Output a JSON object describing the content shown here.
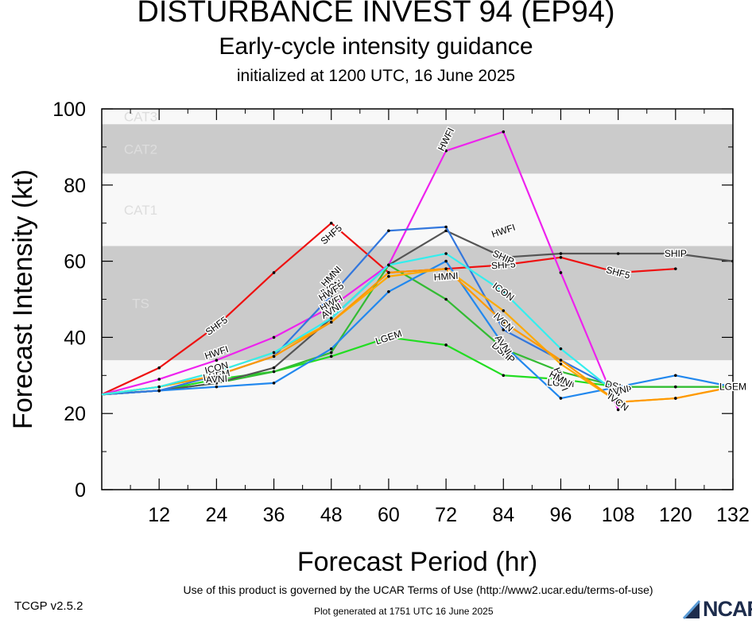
{
  "header": {
    "title": "DISTURBANCE INVEST 94 (EP94)",
    "subtitle": "Early-cycle intensity guidance",
    "init": "initialized at 1200 UTC, 16 June 2025"
  },
  "footer": {
    "version": "TCGP v2.5.2",
    "terms": "Use of this product is governed by the UCAR Terms of Use (http://www2.ucar.edu/terms-of-use)",
    "generated": "Plot generated at 1751 UTC   16 June 2025",
    "logo": "NCAR"
  },
  "chart_data": {
    "type": "line",
    "xlabel": "Forecast Period (hr)",
    "ylabel": "Forecast Intensity (kt)",
    "xlim": [
      0,
      132
    ],
    "ylim": [
      0,
      100
    ],
    "xticks": [
      12,
      24,
      36,
      48,
      60,
      72,
      84,
      96,
      108,
      120,
      132
    ],
    "yticks": [
      0,
      20,
      40,
      60,
      80,
      100
    ],
    "bands": [
      {
        "label": "TS",
        "y0": 34,
        "y1": 64,
        "color": "#cbcbcb"
      },
      {
        "label": "CAT1",
        "y0": 64,
        "y1": 83,
        "color": "#f8f8f8"
      },
      {
        "label": "CAT2",
        "y0": 83,
        "y1": 96,
        "color": "#cbcbcb"
      },
      {
        "label": "CAT3",
        "y0": 96,
        "y1": 100,
        "color": "#f8f8f8"
      }
    ],
    "background_color": "#f8f8f8",
    "series": [
      {
        "name": "SHF5",
        "color": "#ee1111",
        "x": [
          0,
          12,
          24,
          36,
          48,
          60,
          72,
          84,
          96,
          108,
          120
        ],
        "y": [
          25,
          32,
          43,
          57,
          70,
          57,
          58,
          59,
          61,
          57,
          58
        ],
        "labels": [
          [
            24,
            43
          ],
          [
            48,
            67
          ],
          [
            84,
            59
          ],
          [
            108,
            57
          ]
        ]
      },
      {
        "name": "HWFI",
        "color": "#ee22ee",
        "x": [
          0,
          12,
          24,
          36,
          48,
          60,
          72,
          84,
          96,
          108
        ],
        "y": [
          25,
          29,
          34,
          40,
          48,
          59,
          89,
          94,
          57,
          21
        ],
        "labels": [
          [
            24,
            36
          ],
          [
            48,
            49
          ],
          [
            72,
            92
          ],
          [
            84,
            68
          ],
          [
            96,
            29
          ]
        ]
      },
      {
        "name": "LGEM",
        "color": "#22dd22",
        "x": [
          0,
          12,
          24,
          36,
          48,
          60,
          72,
          84,
          96,
          108,
          120,
          132
        ],
        "y": [
          25,
          26,
          29,
          31,
          35,
          40,
          38,
          30,
          29,
          27,
          27,
          27
        ],
        "labels": [
          [
            24,
            30
          ],
          [
            60,
            40
          ],
          [
            96,
            28
          ],
          [
            132,
            27
          ]
        ]
      },
      {
        "name": "DSHP",
        "color": "#33bb33",
        "x": [
          0,
          12,
          24,
          36,
          48,
          60,
          72,
          84,
          96,
          108,
          120,
          132
        ],
        "y": [
          25,
          26,
          28,
          31,
          36,
          59,
          50,
          37,
          31,
          27,
          27,
          27
        ],
        "labels": [
          [
            84,
            36
          ],
          [
            108,
            27
          ]
        ]
      },
      {
        "name": "SHIP",
        "color": "#555555",
        "x": [
          0,
          12,
          24,
          36,
          48,
          60,
          72,
          84,
          96,
          108,
          120,
          132
        ],
        "y": [
          25,
          26,
          28,
          32,
          45,
          59,
          68,
          61,
          62,
          62,
          62,
          60
        ],
        "labels": [
          [
            84,
            61
          ],
          [
            120,
            62
          ]
        ]
      },
      {
        "name": "AVNI",
        "color": "#2288ee",
        "x": [
          0,
          12,
          24,
          36,
          48,
          60,
          72,
          84,
          96,
          108,
          120,
          132
        ],
        "y": [
          25,
          26,
          27,
          28,
          37,
          52,
          60,
          38,
          24,
          27,
          30,
          27
        ],
        "labels": [
          [
            24,
            29
          ],
          [
            48,
            47
          ],
          [
            84,
            38
          ],
          [
            108,
            26
          ]
        ]
      },
      {
        "name": "HMNI",
        "color": "#3377dd",
        "x": [
          0,
          12,
          24,
          36,
          48,
          60,
          72,
          84,
          96,
          108
        ],
        "y": [
          25,
          26,
          30,
          35,
          51,
          68,
          69,
          42,
          34,
          26
        ],
        "labels": [
          [
            48,
            56
          ],
          [
            72,
            56
          ],
          [
            96,
            29
          ]
        ]
      },
      {
        "name": "ICON",
        "color": "#ffaa00",
        "x": [
          0,
          12,
          24,
          36,
          48,
          60,
          72,
          84,
          96,
          108,
          120,
          132
        ],
        "y": [
          25,
          27,
          31,
          36,
          44,
          56,
          58,
          47,
          33,
          23,
          24,
          27
        ],
        "labels": [
          [
            24,
            32
          ],
          [
            84,
            52
          ]
        ]
      },
      {
        "name": "IVCN",
        "color": "#ff9900",
        "x": [
          0,
          12,
          24,
          36,
          48,
          60,
          72,
          84,
          96,
          108,
          120,
          132
        ],
        "y": [
          25,
          27,
          30,
          35,
          44,
          57,
          58,
          44,
          34,
          23,
          24,
          27
        ],
        "labels": [
          [
            48,
            53
          ],
          [
            84,
            44
          ],
          [
            108,
            23
          ]
        ]
      },
      {
        "name": "HWF5",
        "color": "#33eeee",
        "x": [
          0,
          12,
          24,
          36,
          48,
          60,
          72,
          84,
          96,
          108
        ],
        "y": [
          25,
          27,
          31,
          36,
          45,
          59,
          62,
          52,
          37,
          25
        ],
        "labels": [
          [
            48,
            52
          ]
        ]
      }
    ]
  }
}
